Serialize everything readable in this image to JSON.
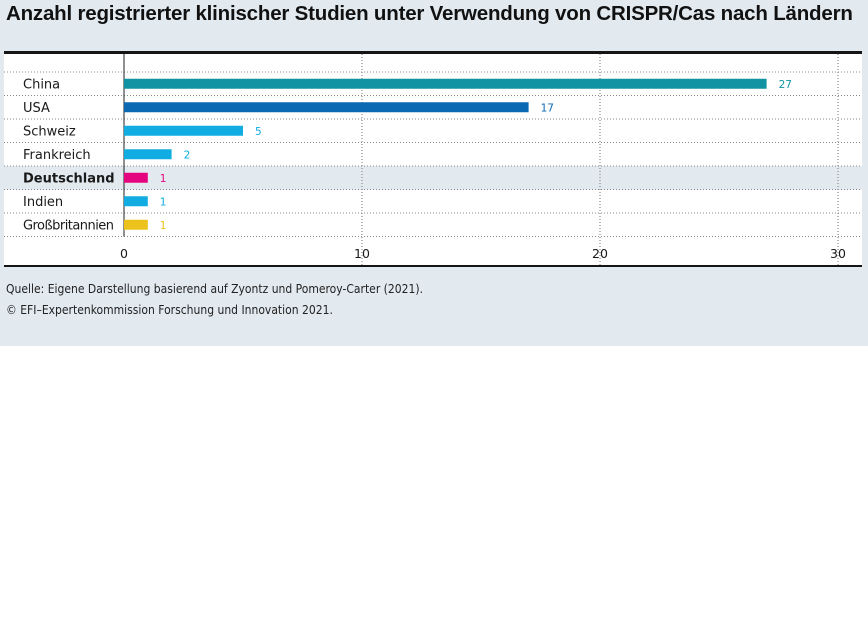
{
  "title": "Anzahl registrierter klinischer Studien unter Verwendung von CRISPR/Cas nach Ländern",
  "source_line": "Quelle: Eigene Darstellung basierend auf Zyontz und Pomeroy-Carter (2021).",
  "copyright_line": "© EFI–Expertenkommission Forschung und Innovation 2021.",
  "chart_data": {
    "type": "bar",
    "orientation": "horizontal",
    "title": "Anzahl registrierter klinischer Studien unter Verwendung von CRISPR/Cas nach Ländern",
    "categories": [
      "China",
      "USA",
      "Schweiz",
      "Frankreich",
      "Deutschland",
      "Indien",
      "Großbritannien"
    ],
    "values": [
      27,
      17,
      5,
      2,
      1,
      1,
      1
    ],
    "colors": [
      "#1293a3",
      "#0b68b3",
      "#11ade2",
      "#11ade2",
      "#e5067f",
      "#11ade2",
      "#ecc31c"
    ],
    "highlight": "Deutschland",
    "highlight_color": "#e2eaf0",
    "xlim": [
      0,
      30
    ],
    "xticks": [
      0,
      10,
      20,
      30
    ],
    "xlabel": "",
    "ylabel": "",
    "grid": true,
    "data_labels": true
  }
}
